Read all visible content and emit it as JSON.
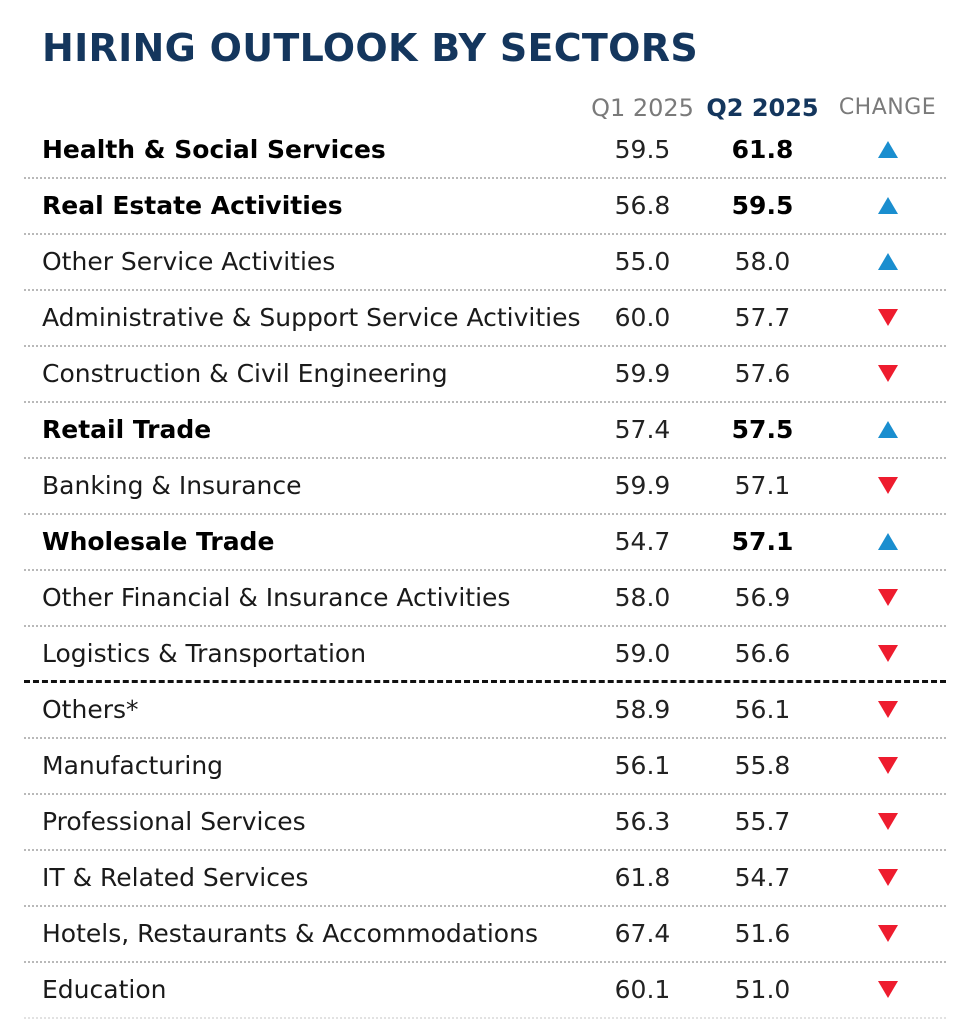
{
  "chart_data": {
    "type": "table",
    "title": "HIRING OUTLOOK BY SECTORS",
    "columns": [
      "Q1 2025",
      "Q2 2025",
      "CHANGE"
    ],
    "colors": {
      "title": "#14365d",
      "up": "#1a8ecf",
      "down": "#ee1c2e"
    },
    "rows": [
      {
        "sector": "Health & Social Services",
        "q1": "59.5",
        "q2": "61.8",
        "change": "up",
        "bold": true
      },
      {
        "sector": "Real Estate Activities",
        "q1": "56.8",
        "q2": "59.5",
        "change": "up",
        "bold": true
      },
      {
        "sector": "Other Service Activities",
        "q1": "55.0",
        "q2": "58.0",
        "change": "up",
        "bold": false
      },
      {
        "sector": "Administrative & Support Service Activities",
        "q1": "60.0",
        "q2": "57.7",
        "change": "down",
        "bold": false
      },
      {
        "sector": "Construction & Civil Engineering",
        "q1": "59.9",
        "q2": "57.6",
        "change": "down",
        "bold": false
      },
      {
        "sector": "Retail Trade",
        "q1": "57.4",
        "q2": "57.5",
        "change": "up",
        "bold": true
      },
      {
        "sector": "Banking & Insurance",
        "q1": "59.9",
        "q2": "57.1",
        "change": "down",
        "bold": false
      },
      {
        "sector": "Wholesale Trade",
        "q1": "54.7",
        "q2": "57.1",
        "change": "up",
        "bold": true
      },
      {
        "sector": "Other Financial & Insurance Activities",
        "q1": "58.0",
        "q2": "56.9",
        "change": "down",
        "bold": false
      },
      {
        "sector": "Logistics & Transportation",
        "q1": "59.0",
        "q2": "56.6",
        "change": "down",
        "bold": false
      },
      {
        "sector": "Others*",
        "q1": "58.9",
        "q2": "56.1",
        "change": "down",
        "bold": false
      },
      {
        "sector": "Manufacturing",
        "q1": "56.1",
        "q2": "55.8",
        "change": "down",
        "bold": false
      },
      {
        "sector": "Professional Services",
        "q1": "56.3",
        "q2": "55.7",
        "change": "down",
        "bold": false
      },
      {
        "sector": "IT & Related Services",
        "q1": "61.8",
        "q2": "54.7",
        "change": "down",
        "bold": false
      },
      {
        "sector": "Hotels, Restaurants & Accommodations",
        "q1": "67.4",
        "q2": "51.6",
        "change": "down",
        "bold": false
      },
      {
        "sector": "Education",
        "q1": "60.1",
        "q2": "51.0",
        "change": "down",
        "bold": false
      }
    ]
  }
}
